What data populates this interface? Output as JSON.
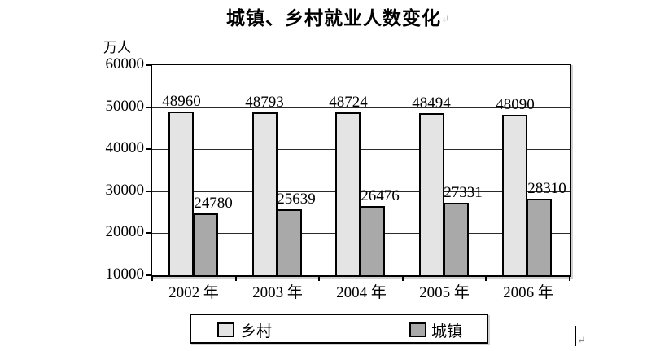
{
  "title": {
    "text": "城镇、乡村就业人数变化",
    "paragraph_mark": "↵"
  },
  "chart_data": {
    "type": "bar",
    "title": "城镇、乡村就业人数变化",
    "unit_label": "万人",
    "categories": [
      "2002 年",
      "2003 年",
      "2004 年",
      "2005 年",
      "2006 年"
    ],
    "series": [
      {
        "name": "乡村",
        "slug": "rural",
        "color": "#e4e4e4",
        "values": [
          48960,
          48793,
          48724,
          48494,
          48090
        ]
      },
      {
        "name": "城镇",
        "slug": "urban",
        "color": "#a9a9a9",
        "values": [
          24780,
          25639,
          26476,
          27331,
          28310
        ]
      }
    ],
    "y_ticks": [
      60000,
      50000,
      40000,
      30000,
      20000,
      10000
    ],
    "ylim": [
      10000,
      60000
    ],
    "gridlines": [
      50000,
      40000,
      30000,
      20000
    ],
    "grid": true,
    "bar_value_labels": true,
    "legend_position": "bottom"
  },
  "legend": {
    "items": [
      {
        "label": "乡村",
        "color": "#e4e4e4",
        "slug": "rural"
      },
      {
        "label": "城镇",
        "color": "#a9a9a9",
        "slug": "urban"
      }
    ]
  },
  "cursor": {
    "paragraph_mark": "↵"
  }
}
